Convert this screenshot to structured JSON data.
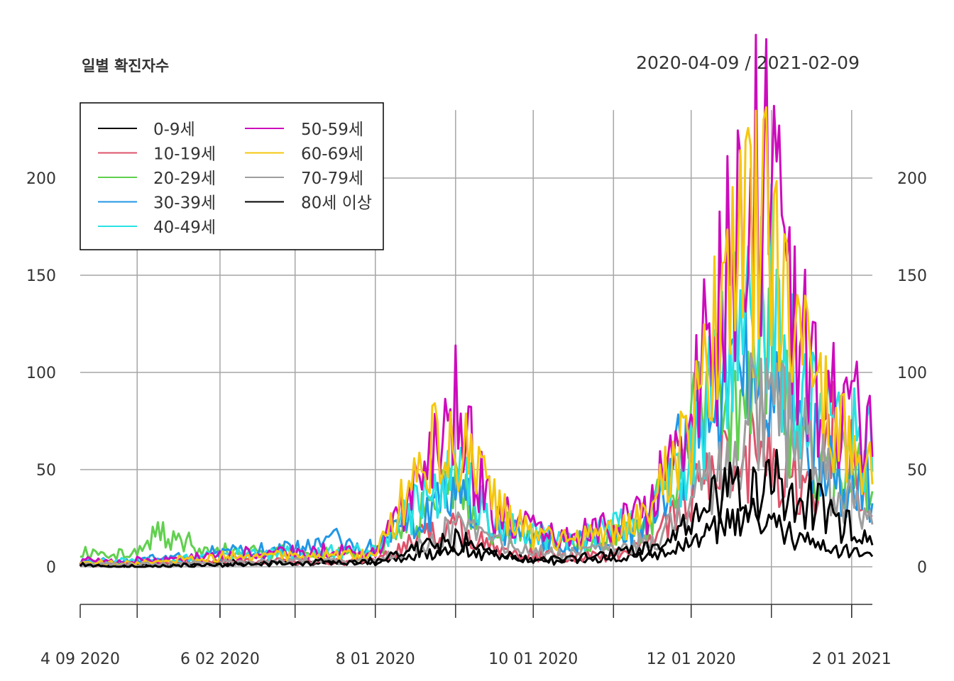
{
  "chart_data": {
    "type": "line",
    "title": "일별 확진자수",
    "date_range_label": "2020-04-09 / 2021-02-09",
    "x_range": [
      "2020-04-09",
      "2021-02-09"
    ],
    "ylim": [
      -20,
      235
    ],
    "y_ticks": [
      0,
      50,
      100,
      150,
      200
    ],
    "x_tick_labels": [
      {
        "date": "2020-04-09",
        "label": "4 09 2020"
      },
      {
        "date": "2020-06-02",
        "label": "6 02 2020"
      },
      {
        "date": "2020-08-01",
        "label": "8 01 2020"
      },
      {
        "date": "2020-10-01",
        "label": "10 01 2020"
      },
      {
        "date": "2020-12-01",
        "label": "12 01 2020"
      },
      {
        "date": "2021-02-01",
        "label": "2 01 2021"
      }
    ],
    "vertical_grid_dates": [
      "2020-05-01",
      "2020-06-02",
      "2020-07-01",
      "2020-08-01",
      "2020-09-01",
      "2020-10-01",
      "2020-11-01",
      "2020-12-01",
      "2021-01-01",
      "2021-02-01"
    ],
    "grid": true,
    "legend_position": "top-left",
    "series": [
      {
        "name": "0-9세",
        "color": "#000000",
        "points": [
          [
            "2020-04-09",
            1
          ],
          [
            "2020-05-01",
            1
          ],
          [
            "2020-06-01",
            2
          ],
          [
            "2020-07-01",
            2
          ],
          [
            "2020-08-01",
            2
          ],
          [
            "2020-08-20",
            6
          ],
          [
            "2020-09-01",
            10
          ],
          [
            "2020-09-15",
            6
          ],
          [
            "2020-10-01",
            4
          ],
          [
            "2020-10-15",
            3
          ],
          [
            "2020-11-01",
            4
          ],
          [
            "2020-11-15",
            5
          ],
          [
            "2020-12-01",
            12
          ],
          [
            "2020-12-15",
            22
          ],
          [
            "2020-12-28",
            25
          ],
          [
            "2021-01-10",
            15
          ],
          [
            "2021-01-25",
            8
          ],
          [
            "2021-02-09",
            7
          ]
        ]
      },
      {
        "name": "10-19세",
        "color": "#df536b",
        "points": [
          [
            "2020-04-09",
            2
          ],
          [
            "2020-05-01",
            2
          ],
          [
            "2020-06-01",
            3
          ],
          [
            "2020-07-01",
            3
          ],
          [
            "2020-08-01",
            3
          ],
          [
            "2020-08-20",
            16
          ],
          [
            "2020-09-01",
            20
          ],
          [
            "2020-09-15",
            10
          ],
          [
            "2020-10-01",
            6
          ],
          [
            "2020-10-15",
            5
          ],
          [
            "2020-11-01",
            7
          ],
          [
            "2020-11-15",
            12
          ],
          [
            "2020-12-01",
            38
          ],
          [
            "2020-12-15",
            55
          ],
          [
            "2020-12-28",
            60
          ],
          [
            "2021-01-10",
            45
          ],
          [
            "2021-01-20",
            35
          ],
          [
            "2021-01-26",
            75
          ],
          [
            "2021-02-09",
            30
          ]
        ]
      },
      {
        "name": "20-29세",
        "color": "#61d04f",
        "points": [
          [
            "2020-04-09",
            8
          ],
          [
            "2020-05-01",
            6
          ],
          [
            "2020-05-08",
            18
          ],
          [
            "2020-06-01",
            8
          ],
          [
            "2020-07-01",
            7
          ],
          [
            "2020-08-01",
            7
          ],
          [
            "2020-08-20",
            28
          ],
          [
            "2020-09-01",
            40
          ],
          [
            "2020-09-15",
            20
          ],
          [
            "2020-10-01",
            14
          ],
          [
            "2020-10-15",
            12
          ],
          [
            "2020-11-01",
            15
          ],
          [
            "2020-11-15",
            22
          ],
          [
            "2020-12-01",
            72
          ],
          [
            "2020-12-15",
            90
          ],
          [
            "2020-12-28",
            110
          ],
          [
            "2021-01-10",
            70
          ],
          [
            "2021-01-25",
            48
          ],
          [
            "2021-02-09",
            45
          ]
        ]
      },
      {
        "name": "30-39세",
        "color": "#2297e6",
        "points": [
          [
            "2020-04-09",
            3
          ],
          [
            "2020-05-01",
            3
          ],
          [
            "2020-06-01",
            7
          ],
          [
            "2020-07-01",
            9
          ],
          [
            "2020-07-15",
            14
          ],
          [
            "2020-08-01",
            9
          ],
          [
            "2020-08-20",
            30
          ],
          [
            "2020-09-01",
            45
          ],
          [
            "2020-09-15",
            22
          ],
          [
            "2020-10-01",
            14
          ],
          [
            "2020-10-15",
            12
          ],
          [
            "2020-11-01",
            15
          ],
          [
            "2020-11-15",
            22
          ],
          [
            "2020-12-01",
            68
          ],
          [
            "2020-12-15",
            85
          ],
          [
            "2020-12-28",
            118
          ],
          [
            "2021-01-10",
            72
          ],
          [
            "2021-01-25",
            50
          ],
          [
            "2021-02-09",
            40
          ]
        ]
      },
      {
        "name": "40-49세",
        "color": "#28e2e5",
        "points": [
          [
            "2020-04-09",
            3
          ],
          [
            "2020-05-01",
            3
          ],
          [
            "2020-06-01",
            6
          ],
          [
            "2020-07-01",
            7
          ],
          [
            "2020-08-01",
            8
          ],
          [
            "2020-08-20",
            36
          ],
          [
            "2020-09-01",
            48
          ],
          [
            "2020-09-15",
            24
          ],
          [
            "2020-10-01",
            17
          ],
          [
            "2020-10-15",
            15
          ],
          [
            "2020-11-01",
            19
          ],
          [
            "2020-11-15",
            27
          ],
          [
            "2020-12-01",
            58
          ],
          [
            "2020-12-15",
            105
          ],
          [
            "2020-12-28",
            155
          ],
          [
            "2021-01-10",
            95
          ],
          [
            "2021-01-25",
            68
          ],
          [
            "2021-02-09",
            60
          ]
        ]
      },
      {
        "name": "50-59세",
        "color": "#cd0bbc",
        "points": [
          [
            "2020-04-09",
            3
          ],
          [
            "2020-05-01",
            3
          ],
          [
            "2020-06-01",
            6
          ],
          [
            "2020-07-01",
            8
          ],
          [
            "2020-08-01",
            8
          ],
          [
            "2020-08-20",
            50
          ],
          [
            "2020-09-01",
            82
          ],
          [
            "2020-09-15",
            30
          ],
          [
            "2020-10-01",
            18
          ],
          [
            "2020-10-15",
            16
          ],
          [
            "2020-11-01",
            20
          ],
          [
            "2020-11-15",
            30
          ],
          [
            "2020-12-01",
            82
          ],
          [
            "2020-12-15",
            150
          ],
          [
            "2020-12-28",
            200
          ],
          [
            "2021-01-10",
            130
          ],
          [
            "2021-01-25",
            85
          ],
          [
            "2021-02-09",
            70
          ]
        ]
      },
      {
        "name": "60-69세",
        "color": "#f5c710",
        "points": [
          [
            "2020-04-09",
            2
          ],
          [
            "2020-05-01",
            2
          ],
          [
            "2020-06-01",
            5
          ],
          [
            "2020-07-01",
            6
          ],
          [
            "2020-08-01",
            6
          ],
          [
            "2020-08-20",
            55
          ],
          [
            "2020-09-01",
            65
          ],
          [
            "2020-09-15",
            35
          ],
          [
            "2020-10-01",
            15
          ],
          [
            "2020-10-15",
            13
          ],
          [
            "2020-11-01",
            17
          ],
          [
            "2020-11-15",
            25
          ],
          [
            "2020-12-01",
            72
          ],
          [
            "2020-12-15",
            140
          ],
          [
            "2020-12-28",
            185
          ],
          [
            "2021-01-10",
            115
          ],
          [
            "2021-01-25",
            72
          ],
          [
            "2021-02-09",
            55
          ]
        ]
      },
      {
        "name": "70-79세",
        "color": "#9e9e9e",
        "points": [
          [
            "2020-04-09",
            1
          ],
          [
            "2020-05-01",
            1
          ],
          [
            "2020-06-01",
            2
          ],
          [
            "2020-07-01",
            3
          ],
          [
            "2020-08-01",
            3
          ],
          [
            "2020-08-20",
            12
          ],
          [
            "2020-09-01",
            20
          ],
          [
            "2020-09-15",
            14
          ],
          [
            "2020-10-01",
            8
          ],
          [
            "2020-10-15",
            7
          ],
          [
            "2020-11-01",
            9
          ],
          [
            "2020-11-15",
            13
          ],
          [
            "2020-12-01",
            32
          ],
          [
            "2020-12-15",
            60
          ],
          [
            "2020-12-28",
            85
          ],
          [
            "2021-01-10",
            70
          ],
          [
            "2021-01-25",
            40
          ],
          [
            "2021-02-09",
            28
          ]
        ]
      },
      {
        "name": "80세 이상",
        "color": "#000000",
        "points": [
          [
            "2020-04-09",
            1
          ],
          [
            "2020-05-01",
            0
          ],
          [
            "2020-06-01",
            1
          ],
          [
            "2020-07-01",
            2
          ],
          [
            "2020-08-01",
            3
          ],
          [
            "2020-08-20",
            10
          ],
          [
            "2020-09-01",
            14
          ],
          [
            "2020-09-15",
            8
          ],
          [
            "2020-10-01",
            3
          ],
          [
            "2020-10-15",
            4
          ],
          [
            "2020-11-01",
            7
          ],
          [
            "2020-11-15",
            10
          ],
          [
            "2020-12-01",
            22
          ],
          [
            "2020-12-15",
            40
          ],
          [
            "2020-12-28",
            45
          ],
          [
            "2021-01-10",
            40
          ],
          [
            "2021-01-25",
            25
          ],
          [
            "2021-02-09",
            16
          ]
        ]
      }
    ]
  }
}
